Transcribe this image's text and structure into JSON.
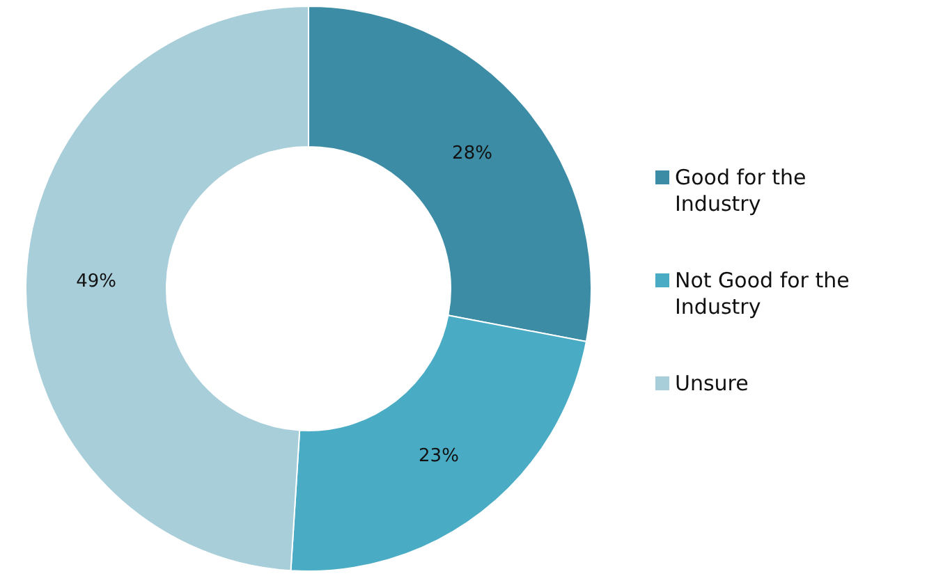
{
  "chart_data": {
    "type": "donut",
    "categories": [
      "Good for the Industry",
      "Not Good for the Industry",
      "Unsure"
    ],
    "values": [
      28,
      23,
      49
    ],
    "value_labels": [
      "28%",
      "23%",
      "49%"
    ],
    "colors": [
      "#3d8ca5",
      "#4aabc4",
      "#a8ceda"
    ],
    "legend": "right"
  }
}
